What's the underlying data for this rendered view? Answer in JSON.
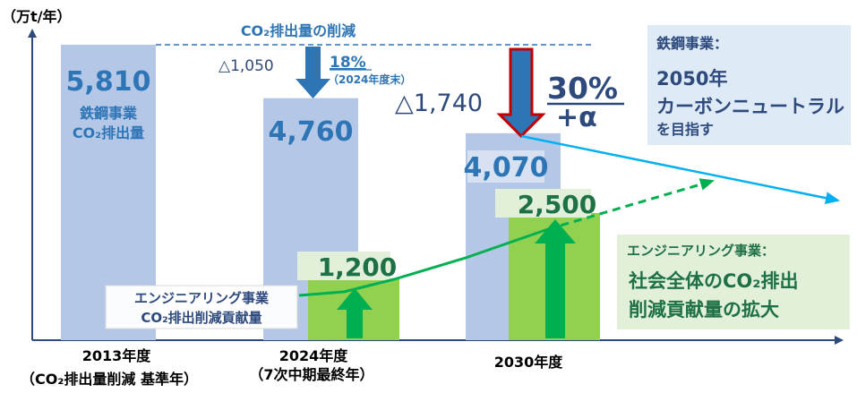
{
  "chart_data": {
    "type": "bar",
    "unit_label": "（万t/年）",
    "categories": [
      "2013年度",
      "2024年度",
      "2030年度"
    ],
    "category_notes": [
      "（CO₂排出量削減 基準年）",
      "（7次中期最終年）",
      ""
    ],
    "series": [
      {
        "name": "鉄鋼事業 CO₂排出量",
        "values": [
          5810,
          4760,
          4070
        ],
        "value_labels": [
          "5,810",
          "4,760",
          "4,070"
        ]
      },
      {
        "name": "エンジニアリング事業 CO₂排出削減貢献量",
        "values": [
          null,
          1200,
          2500
        ],
        "value_labels": [
          "",
          "1,200",
          "2,500"
        ]
      }
    ],
    "bar_inner_label": [
      "鉄鋼事業",
      "CO₂排出量"
    ],
    "eng_label": [
      "エンジニアリング事業",
      "CO₂排出削減貢献量"
    ],
    "reduction_title": "CO₂排出量の削減",
    "reduction_2024": {
      "value_label": "△1,050",
      "percent": "18%",
      "percent_note": "（2024年度末）"
    },
    "reduction_2030": {
      "value_label": "△1,740",
      "percent": "30%",
      "percent_plus": "+α"
    },
    "steel_callout": {
      "title": "鉄鋼事業：",
      "line1": "2050年",
      "line2": "カーボンニュートラル",
      "line3": "を目指す"
    },
    "eng_callout": {
      "title": "エンジニアリング事業：",
      "line1": "社会全体のCO₂排出",
      "line2": "削減貢献量の拡大"
    },
    "colors": {
      "steel_bar": "#b4c7e7",
      "steel_text": "#2e75b6",
      "eng_bar": "#92d050",
      "eng_text": "#1e7145",
      "green_arrow": "#00b050",
      "blue_arrow": "#2e75b6",
      "red_arrow": "#c00000",
      "trend_line": "#00b0f0",
      "steel_callout_bg": "#deebf7",
      "eng_callout_bg": "#e2f0d9"
    }
  }
}
